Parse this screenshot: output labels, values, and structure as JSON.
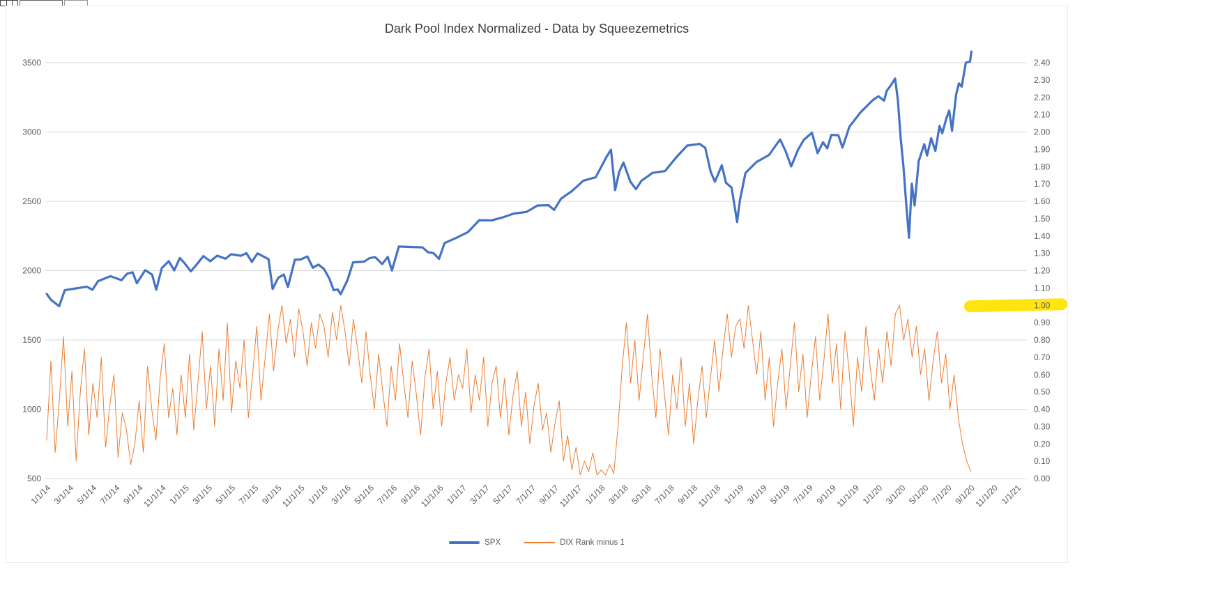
{
  "chart_data": {
    "type": "line",
    "title": "Dark Pool Index Normalized - Data by Squeezemetrics",
    "xlabel": "",
    "ylabel": "",
    "grid": "horizontal",
    "legend": [
      "SPX",
      "DIX Rank minus 1"
    ],
    "legend_position": "bottom",
    "x_axis": {
      "start": 2014,
      "end": 2021.07,
      "label_interval_months": 2,
      "labels": [
        "1/1/14",
        "3/1/14",
        "5/1/14",
        "7/1/14",
        "9/1/14",
        "11/1/14",
        "1/1/15",
        "3/1/15",
        "5/1/15",
        "7/1/15",
        "9/1/15",
        "11/1/15",
        "1/1/16",
        "3/1/16",
        "5/1/16",
        "7/1/16",
        "9/1/16",
        "11/1/16",
        "1/1/17",
        "3/1/17",
        "5/1/17",
        "7/1/17",
        "9/1/17",
        "11/1/17",
        "1/1/18",
        "3/1/18",
        "5/1/18",
        "7/1/18",
        "9/1/18",
        "11/1/18",
        "1/1/19",
        "3/1/19",
        "5/1/19",
        "7/1/19",
        "9/1/19",
        "11/1/19",
        "1/1/20",
        "3/1/20",
        "5/1/20",
        "7/1/20",
        "9/1/20",
        "11/1/20",
        "1/1/21"
      ]
    },
    "y_left": {
      "min": 500,
      "max": 3500,
      "ticks": [
        500,
        1000,
        1500,
        2000,
        2500,
        3000,
        3500
      ]
    },
    "y_right": {
      "min": 0,
      "max": 2.4,
      "ticks": [
        "0.00",
        "0.10",
        "0.20",
        "0.30",
        "0.40",
        "0.50",
        "0.60",
        "0.70",
        "0.80",
        "0.90",
        "1.00",
        "1.10",
        "1.20",
        "1.30",
        "1.40",
        "1.50",
        "1.60",
        "1.70",
        "1.80",
        "1.90",
        "2.00",
        "2.10",
        "2.20",
        "2.30",
        "2.40"
      ],
      "highlighted_tick": "1.00",
      "highlight_color": "#FFE410"
    },
    "series": [
      {
        "name": "SPX",
        "axis": "left",
        "color": "#4472C4",
        "width": 3.2,
        "points": [
          [
            2014.0,
            1832
          ],
          [
            2014.03,
            1790
          ],
          [
            2014.09,
            1743
          ],
          [
            2014.13,
            1859
          ],
          [
            2014.21,
            1872
          ],
          [
            2014.29,
            1884
          ],
          [
            2014.33,
            1862
          ],
          [
            2014.37,
            1924
          ],
          [
            2014.46,
            1960
          ],
          [
            2014.54,
            1931
          ],
          [
            2014.58,
            1978
          ],
          [
            2014.62,
            1988
          ],
          [
            2014.65,
            1909
          ],
          [
            2014.71,
            2003
          ],
          [
            2014.76,
            1972
          ],
          [
            2014.79,
            1862
          ],
          [
            2014.83,
            2018
          ],
          [
            2014.88,
            2068
          ],
          [
            2014.92,
            2002
          ],
          [
            2014.96,
            2091
          ],
          [
            2014.99,
            2059
          ],
          [
            2015.04,
            1995
          ],
          [
            2015.09,
            2055
          ],
          [
            2015.13,
            2105
          ],
          [
            2015.18,
            2068
          ],
          [
            2015.23,
            2108
          ],
          [
            2015.29,
            2086
          ],
          [
            2015.33,
            2118
          ],
          [
            2015.4,
            2107
          ],
          [
            2015.44,
            2126
          ],
          [
            2015.48,
            2063
          ],
          [
            2015.52,
            2124
          ],
          [
            2015.56,
            2104
          ],
          [
            2015.6,
            2083
          ],
          [
            2015.63,
            1868
          ],
          [
            2015.67,
            1948
          ],
          [
            2015.71,
            1972
          ],
          [
            2015.74,
            1882
          ],
          [
            2015.79,
            2079
          ],
          [
            2015.83,
            2080
          ],
          [
            2015.88,
            2102
          ],
          [
            2015.92,
            2021
          ],
          [
            2015.96,
            2044
          ],
          [
            2016.0,
            2012
          ],
          [
            2016.04,
            1940
          ],
          [
            2016.07,
            1859
          ],
          [
            2016.1,
            1864
          ],
          [
            2016.12,
            1829
          ],
          [
            2016.17,
            1932
          ],
          [
            2016.21,
            2060
          ],
          [
            2016.29,
            2065
          ],
          [
            2016.33,
            2091
          ],
          [
            2016.37,
            2097
          ],
          [
            2016.42,
            2047
          ],
          [
            2016.46,
            2099
          ],
          [
            2016.49,
            2001
          ],
          [
            2016.54,
            2174
          ],
          [
            2016.62,
            2171
          ],
          [
            2016.71,
            2168
          ],
          [
            2016.75,
            2133
          ],
          [
            2016.79,
            2126
          ],
          [
            2016.83,
            2085
          ],
          [
            2016.87,
            2199
          ],
          [
            2016.96,
            2239
          ],
          [
            2017.04,
            2279
          ],
          [
            2017.12,
            2364
          ],
          [
            2017.21,
            2363
          ],
          [
            2017.29,
            2384
          ],
          [
            2017.37,
            2412
          ],
          [
            2017.46,
            2423
          ],
          [
            2017.54,
            2470
          ],
          [
            2017.62,
            2472
          ],
          [
            2017.66,
            2438
          ],
          [
            2017.71,
            2519
          ],
          [
            2017.79,
            2575
          ],
          [
            2017.87,
            2648
          ],
          [
            2017.96,
            2674
          ],
          [
            2018.04,
            2824
          ],
          [
            2018.07,
            2872
          ],
          [
            2018.1,
            2581
          ],
          [
            2018.13,
            2714
          ],
          [
            2018.16,
            2780
          ],
          [
            2018.21,
            2641
          ],
          [
            2018.25,
            2588
          ],
          [
            2018.29,
            2648
          ],
          [
            2018.37,
            2705
          ],
          [
            2018.46,
            2718
          ],
          [
            2018.54,
            2816
          ],
          [
            2018.62,
            2902
          ],
          [
            2018.71,
            2914
          ],
          [
            2018.75,
            2886
          ],
          [
            2018.79,
            2712
          ],
          [
            2018.82,
            2641
          ],
          [
            2018.87,
            2760
          ],
          [
            2018.9,
            2633
          ],
          [
            2018.94,
            2599
          ],
          [
            2018.97,
            2416
          ],
          [
            2018.98,
            2351
          ],
          [
            2019.0,
            2506
          ],
          [
            2019.04,
            2704
          ],
          [
            2019.12,
            2784
          ],
          [
            2019.21,
            2834
          ],
          [
            2019.29,
            2946
          ],
          [
            2019.33,
            2862
          ],
          [
            2019.37,
            2752
          ],
          [
            2019.42,
            2873
          ],
          [
            2019.46,
            2942
          ],
          [
            2019.52,
            2995
          ],
          [
            2019.56,
            2847
          ],
          [
            2019.6,
            2926
          ],
          [
            2019.63,
            2882
          ],
          [
            2019.66,
            2979
          ],
          [
            2019.71,
            2977
          ],
          [
            2019.74,
            2888
          ],
          [
            2019.79,
            3038
          ],
          [
            2019.87,
            3141
          ],
          [
            2019.96,
            3231
          ],
          [
            2020.0,
            3258
          ],
          [
            2020.04,
            3226
          ],
          [
            2020.06,
            3298
          ],
          [
            2020.09,
            3338
          ],
          [
            2020.12,
            3386
          ],
          [
            2020.14,
            3226
          ],
          [
            2020.16,
            2954
          ],
          [
            2020.18,
            2746
          ],
          [
            2020.2,
            2481
          ],
          [
            2020.22,
            2237
          ],
          [
            2020.24,
            2627
          ],
          [
            2020.26,
            2470
          ],
          [
            2020.29,
            2790
          ],
          [
            2020.33,
            2912
          ],
          [
            2020.35,
            2830
          ],
          [
            2020.38,
            2955
          ],
          [
            2020.41,
            2864
          ],
          [
            2020.44,
            3044
          ],
          [
            2020.46,
            2991
          ],
          [
            2020.49,
            3100
          ],
          [
            2020.51,
            3155
          ],
          [
            2020.53,
            3009
          ],
          [
            2020.56,
            3271
          ],
          [
            2020.58,
            3351
          ],
          [
            2020.6,
            3327
          ],
          [
            2020.63,
            3500
          ],
          [
            2020.66,
            3508
          ],
          [
            2020.67,
            3580
          ]
        ]
      },
      {
        "name": "DIX Rank minus 1",
        "axis": "right",
        "color": "#ED7D31",
        "width": 1,
        "x_start": 2014.0,
        "x_step": 0.030303,
        "values": [
          0.22,
          0.68,
          0.15,
          0.45,
          0.82,
          0.3,
          0.62,
          0.1,
          0.5,
          0.75,
          0.25,
          0.55,
          0.35,
          0.7,
          0.18,
          0.42,
          0.6,
          0.12,
          0.38,
          0.28,
          0.08,
          0.2,
          0.45,
          0.15,
          0.65,
          0.4,
          0.22,
          0.58,
          0.78,
          0.35,
          0.52,
          0.25,
          0.6,
          0.35,
          0.72,
          0.28,
          0.55,
          0.85,
          0.4,
          0.65,
          0.3,
          0.75,
          0.45,
          0.9,
          0.38,
          0.68,
          0.52,
          0.8,
          0.35,
          0.6,
          0.88,
          0.45,
          0.7,
          0.95,
          0.62,
          0.85,
          1.0,
          0.78,
          0.92,
          0.7,
          0.98,
          0.85,
          0.65,
          0.9,
          0.75,
          0.95,
          0.88,
          0.7,
          0.96,
          0.8,
          1.0,
          0.85,
          0.65,
          0.92,
          0.75,
          0.55,
          0.85,
          0.6,
          0.4,
          0.72,
          0.5,
          0.3,
          0.65,
          0.45,
          0.78,
          0.55,
          0.35,
          0.68,
          0.48,
          0.25,
          0.58,
          0.75,
          0.4,
          0.62,
          0.3,
          0.55,
          0.7,
          0.45,
          0.6,
          0.52,
          0.75,
          0.38,
          0.6,
          0.45,
          0.7,
          0.3,
          0.55,
          0.65,
          0.35,
          0.58,
          0.25,
          0.48,
          0.62,
          0.3,
          0.5,
          0.2,
          0.42,
          0.55,
          0.28,
          0.38,
          0.15,
          0.32,
          0.45,
          0.1,
          0.25,
          0.05,
          0.18,
          0.02,
          0.1,
          0.04,
          0.15,
          0.02,
          0.05,
          0.02,
          0.08,
          0.03,
          0.3,
          0.65,
          0.9,
          0.55,
          0.8,
          0.45,
          0.7,
          0.95,
          0.6,
          0.35,
          0.75,
          0.5,
          0.25,
          0.6,
          0.4,
          0.7,
          0.3,
          0.55,
          0.2,
          0.45,
          0.65,
          0.35,
          0.58,
          0.8,
          0.5,
          0.75,
          0.95,
          0.7,
          0.88,
          0.92,
          0.75,
          1.0,
          0.8,
          0.6,
          0.85,
          0.45,
          0.7,
          0.3,
          0.55,
          0.75,
          0.4,
          0.65,
          0.9,
          0.5,
          0.72,
          0.35,
          0.6,
          0.82,
          0.45,
          0.68,
          0.95,
          0.55,
          0.78,
          0.4,
          0.85,
          0.62,
          0.3,
          0.7,
          0.5,
          0.88,
          0.65,
          0.45,
          0.75,
          0.55,
          0.85,
          0.65,
          0.95,
          1.0,
          0.8,
          0.92,
          0.7,
          0.88,
          0.6,
          0.75,
          0.45,
          0.68,
          0.85,
          0.55,
          0.72,
          0.4,
          0.6,
          0.35,
          0.2,
          0.1,
          0.04
        ]
      }
    ]
  }
}
